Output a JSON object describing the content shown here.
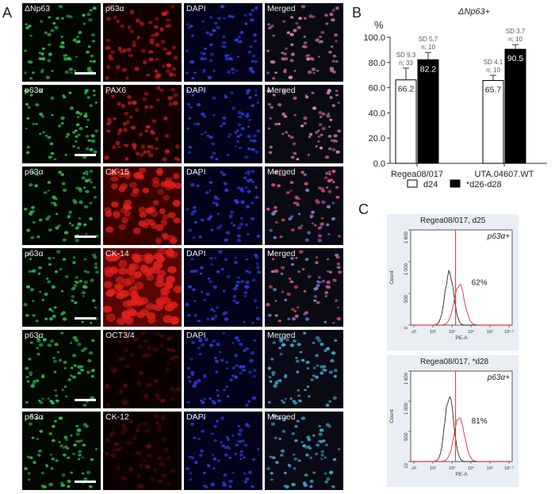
{
  "panel_letters": [
    "A",
    "B",
    "C"
  ],
  "panel_a": {
    "rows": [
      {
        "labels": [
          "ΔNp63",
          "p63α",
          "DAPI",
          "Merged"
        ],
        "red_intensity": "medium"
      },
      {
        "labels": [
          "p63α",
          "PAX6",
          "DAPI",
          "Merged"
        ],
        "red_intensity": "medium"
      },
      {
        "labels": [
          "p63α",
          "CK-15",
          "DAPI",
          "Merged"
        ],
        "red_intensity": "high"
      },
      {
        "labels": [
          "p63α",
          "CK-14",
          "DAPI",
          "Merged"
        ],
        "red_intensity": "very-high"
      },
      {
        "labels": [
          "p63α",
          "OCT3/4",
          "DAPI",
          "Merged"
        ],
        "red_intensity": "faint"
      },
      {
        "labels": [
          "p63α",
          "CK-12",
          "DAPI",
          "Merged"
        ],
        "red_intensity": "faint"
      }
    ],
    "channel_colors": {
      "green": "#2fb84a",
      "red": "#e0201c",
      "blue": "#2a3cd6"
    }
  },
  "chart_data": {
    "type": "bar",
    "title": "ΔNp63+",
    "ylabel": "%",
    "ylim": [
      0,
      100
    ],
    "yticks": [
      "0.0",
      "20.0",
      "40.0",
      "60.0",
      "80.0",
      "100.0"
    ],
    "categories": [
      "Regea08/017",
      "UTA.04607.WT"
    ],
    "series": [
      {
        "name": "d24",
        "values": [
          66.2,
          65.7
        ],
        "sd": [
          9.3,
          4.1
        ],
        "n": [
          33,
          10
        ],
        "value_labels": [
          "66.2",
          "65.7"
        ],
        "annotations": [
          "SD 9.3\nn; 33",
          "SD 4.1\nn; 10"
        ],
        "fill": "#ffffff"
      },
      {
        "name": "*d26-d28",
        "values": [
          82.2,
          90.5
        ],
        "sd": [
          5.7,
          3.7
        ],
        "n": [
          10,
          10
        ],
        "value_labels": [
          "82.2",
          "90.5"
        ],
        "annotations": [
          "SD 5.7\nn; 10",
          "SD 3.7\nn; 10"
        ],
        "fill": "#000000"
      }
    ],
    "legend": "bottom"
  },
  "panel_c": {
    "plots": [
      {
        "title": "Regea08/017, d25",
        "gate": "p63α+",
        "percent": "62%",
        "yticks": [
          "0",
          "500",
          "1 000",
          "1 600"
        ],
        "ylabel": "Count"
      },
      {
        "title": "Regea08/017, *d28",
        "gate": "p63α+",
        "percent": "81%",
        "yticks": [
          "10",
          "500",
          "1 000",
          "1 600"
        ],
        "ylabel": "Count"
      }
    ],
    "xlabel": "PE-A",
    "xticks": [
      "-10²",
      "10²",
      "10³",
      "10⁴",
      "10⁵",
      "10^5.2"
    ],
    "xticks_display": [
      "ₙ0¹",
      "10²",
      "10³",
      "10⁴",
      "10⁵",
      "10⁵·²"
    ]
  }
}
